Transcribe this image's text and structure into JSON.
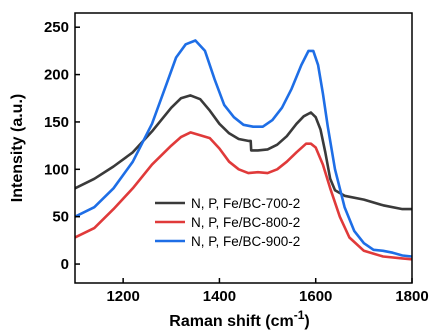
{
  "chart_data": {
    "type": "line",
    "title": "",
    "xlabel": "Raman shift (cm",
    "xlabel_superscript": "-1",
    "xlabel_suffix": ")",
    "ylabel": "Intensity (a.u.)",
    "xlim": [
      1100,
      1800
    ],
    "ylim": [
      -20,
      265
    ],
    "xticks": [
      1200,
      1400,
      1600,
      1800
    ],
    "yticks": [
      0,
      50,
      100,
      150,
      200,
      250
    ],
    "grid": false,
    "legend_position": "lower-left",
    "series": [
      {
        "name": "N, P, Fe/BC-700-2",
        "color": "#3a3a3a",
        "points": [
          [
            1100,
            80
          ],
          [
            1140,
            90
          ],
          [
            1180,
            103
          ],
          [
            1220,
            118
          ],
          [
            1260,
            140
          ],
          [
            1300,
            165
          ],
          [
            1320,
            175
          ],
          [
            1340,
            178
          ],
          [
            1360,
            174
          ],
          [
            1380,
            162
          ],
          [
            1400,
            148
          ],
          [
            1420,
            138
          ],
          [
            1440,
            132
          ],
          [
            1460,
            130
          ],
          [
            1465,
            130
          ],
          [
            1466,
            120
          ],
          [
            1480,
            120
          ],
          [
            1500,
            121
          ],
          [
            1520,
            126
          ],
          [
            1540,
            135
          ],
          [
            1560,
            148
          ],
          [
            1575,
            156
          ],
          [
            1590,
            160
          ],
          [
            1600,
            155
          ],
          [
            1610,
            142
          ],
          [
            1620,
            118
          ],
          [
            1630,
            90
          ],
          [
            1640,
            78
          ],
          [
            1660,
            72
          ],
          [
            1700,
            68
          ],
          [
            1740,
            62
          ],
          [
            1780,
            58
          ],
          [
            1800,
            58
          ]
        ]
      },
      {
        "name": "N, P, Fe/BC-800-2",
        "color": "#e03a3a",
        "points": [
          [
            1100,
            28
          ],
          [
            1140,
            38
          ],
          [
            1180,
            58
          ],
          [
            1220,
            80
          ],
          [
            1260,
            105
          ],
          [
            1300,
            125
          ],
          [
            1320,
            134
          ],
          [
            1340,
            139
          ],
          [
            1360,
            136
          ],
          [
            1380,
            133
          ],
          [
            1400,
            122
          ],
          [
            1420,
            108
          ],
          [
            1440,
            100
          ],
          [
            1460,
            96
          ],
          [
            1480,
            97
          ],
          [
            1500,
            96
          ],
          [
            1520,
            100
          ],
          [
            1540,
            108
          ],
          [
            1560,
            118
          ],
          [
            1580,
            127
          ],
          [
            1590,
            127
          ],
          [
            1600,
            123
          ],
          [
            1615,
            105
          ],
          [
            1630,
            80
          ],
          [
            1650,
            50
          ],
          [
            1670,
            28
          ],
          [
            1700,
            14
          ],
          [
            1740,
            8
          ],
          [
            1780,
            6
          ],
          [
            1800,
            5
          ]
        ]
      },
      {
        "name": "N, P, Fe/BC-900-2",
        "color": "#1e6ee6",
        "points": [
          [
            1100,
            50
          ],
          [
            1140,
            60
          ],
          [
            1180,
            80
          ],
          [
            1220,
            108
          ],
          [
            1260,
            148
          ],
          [
            1290,
            190
          ],
          [
            1310,
            218
          ],
          [
            1330,
            232
          ],
          [
            1350,
            236
          ],
          [
            1370,
            225
          ],
          [
            1390,
            195
          ],
          [
            1410,
            168
          ],
          [
            1430,
            155
          ],
          [
            1450,
            147
          ],
          [
            1470,
            145
          ],
          [
            1490,
            145
          ],
          [
            1510,
            152
          ],
          [
            1530,
            165
          ],
          [
            1550,
            185
          ],
          [
            1570,
            210
          ],
          [
            1585,
            225
          ],
          [
            1595,
            225
          ],
          [
            1605,
            210
          ],
          [
            1615,
            180
          ],
          [
            1625,
            145
          ],
          [
            1640,
            100
          ],
          [
            1660,
            60
          ],
          [
            1680,
            35
          ],
          [
            1700,
            22
          ],
          [
            1720,
            15
          ],
          [
            1740,
            14
          ],
          [
            1760,
            12
          ],
          [
            1780,
            9
          ],
          [
            1800,
            8
          ]
        ]
      }
    ]
  }
}
